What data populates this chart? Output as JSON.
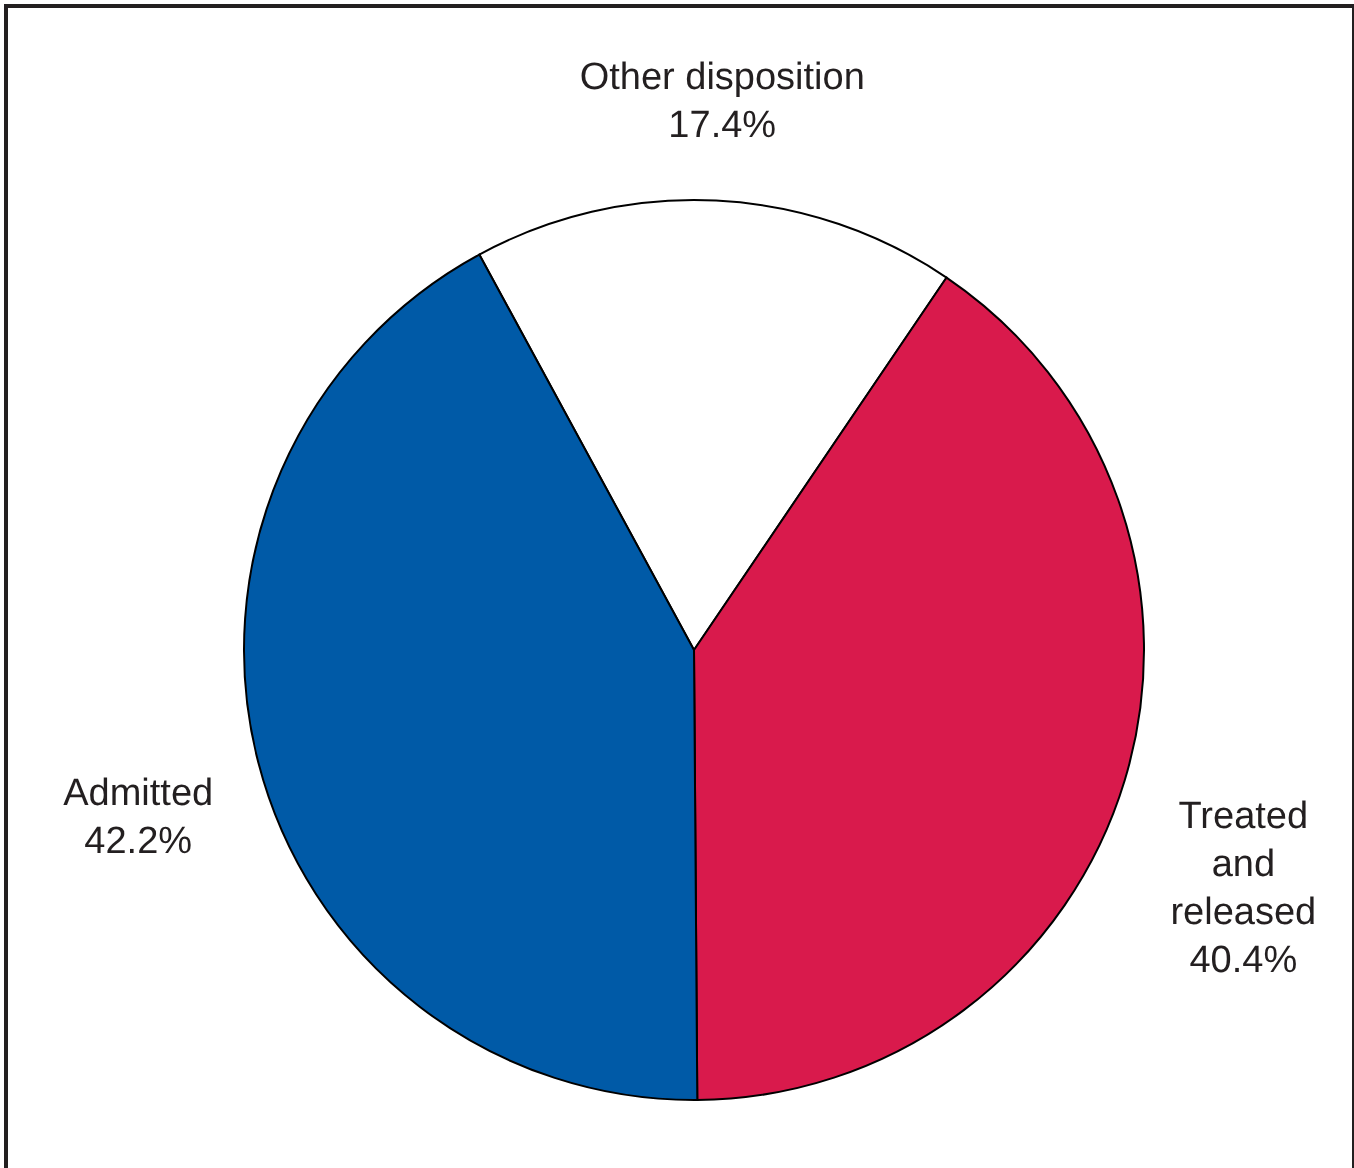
{
  "chart_data": {
    "type": "pie",
    "categories": [
      "Other disposition",
      "Treated and released",
      "Admitted"
    ],
    "values": [
      17.4,
      40.4,
      42.2
    ],
    "colors": [
      "#ffffff",
      "#d91a4c",
      "#005aa7"
    ],
    "value_labels": [
      "17.4%",
      "40.4%",
      "42.2%"
    ]
  }
}
